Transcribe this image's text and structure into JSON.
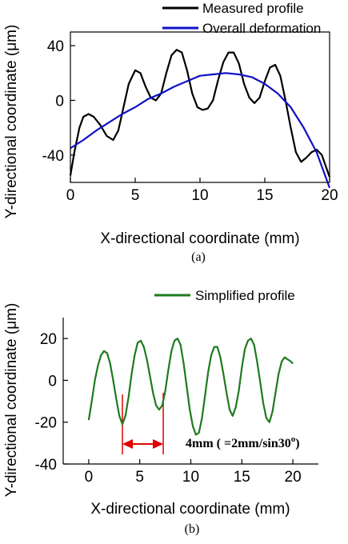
{
  "chart_data": [
    {
      "type": "line",
      "caption": "(a)",
      "xlabel": "X-directional coordinate (mm)",
      "ylabel": "Y-directional coordinate (μm)",
      "xlim": [
        0,
        20
      ],
      "ylim": [
        -60,
        50
      ],
      "xticks": [
        0,
        5,
        10,
        15,
        20
      ],
      "yticks": [
        -40,
        0,
        40
      ],
      "legend_position": "top-right",
      "series": [
        {
          "name": "Measured profile",
          "color": "#000000",
          "x": [
            0,
            0.3,
            0.7,
            1.0,
            1.4,
            1.8,
            2.3,
            2.8,
            3.3,
            3.7,
            4.1,
            4.5,
            5.0,
            5.4,
            5.8,
            6.2,
            6.6,
            7.0,
            7.4,
            7.8,
            8.2,
            8.6,
            9.0,
            9.4,
            9.8,
            10.2,
            10.6,
            11.0,
            11.4,
            11.8,
            12.2,
            12.6,
            13.0,
            13.4,
            13.8,
            14.2,
            14.6,
            15.0,
            15.4,
            15.8,
            16.2,
            16.6,
            17.0,
            17.4,
            17.8,
            18.2,
            18.6,
            19.0,
            19.4,
            19.7,
            20.0
          ],
          "y": [
            -55,
            -38,
            -20,
            -12,
            -10,
            -12,
            -18,
            -26,
            -29,
            -22,
            -5,
            12,
            22,
            20,
            10,
            2,
            0,
            5,
            20,
            33,
            37,
            35,
            22,
            5,
            -5,
            -7,
            -6,
            0,
            15,
            28,
            35,
            35,
            27,
            12,
            2,
            -2,
            2,
            14,
            24,
            26,
            18,
            0,
            -20,
            -38,
            -45,
            -42,
            -38,
            -36,
            -40,
            -48,
            -56
          ]
        },
        {
          "name": "Overall deformation",
          "color": "#1010c8",
          "x": [
            0,
            1,
            2,
            3,
            4,
            5,
            6,
            7,
            8,
            9,
            10,
            11,
            12,
            13,
            14,
            15,
            16,
            17,
            18,
            19,
            20
          ],
          "y": [
            -35,
            -29,
            -22,
            -16,
            -10,
            -5,
            1,
            5,
            10,
            14,
            18,
            19,
            20,
            19,
            17,
            12,
            5,
            -5,
            -20,
            -38,
            -64
          ]
        }
      ]
    },
    {
      "type": "line",
      "caption": "(b)",
      "xlabel": "X-directional coordinate (mm)",
      "ylabel": "Y-directional coordinate (μm)",
      "xlim": [
        -2.5,
        22.5
      ],
      "ylim": [
        -40,
        30
      ],
      "xticks": [
        0,
        5,
        10,
        15,
        20
      ],
      "yticks": [
        -40,
        -20,
        0,
        20
      ],
      "legend_position": "top-right",
      "annotation": "4mm ( =2mm/sin30",
      "annotation_superscript": "o",
      "annotation_end": ")",
      "annotation_markers_x": [
        3.3,
        7.3
      ],
      "series": [
        {
          "name": "Simplified profile",
          "color": "#1e7b1e",
          "x": [
            0,
            0.3,
            0.6,
            0.9,
            1.2,
            1.5,
            1.8,
            2.1,
            2.4,
            2.7,
            3.0,
            3.3,
            3.6,
            3.9,
            4.2,
            4.5,
            4.8,
            5.1,
            5.4,
            5.7,
            6.0,
            6.3,
            6.6,
            6.9,
            7.2,
            7.5,
            7.8,
            8.1,
            8.4,
            8.7,
            9.0,
            9.3,
            9.6,
            9.9,
            10.2,
            10.5,
            10.8,
            11.1,
            11.4,
            11.7,
            12.0,
            12.3,
            12.6,
            12.9,
            13.2,
            13.5,
            13.8,
            14.1,
            14.4,
            14.7,
            15.0,
            15.3,
            15.6,
            15.9,
            16.2,
            16.5,
            16.8,
            17.1,
            17.4,
            17.7,
            18.0,
            18.3,
            18.6,
            18.9,
            19.2,
            19.5,
            19.8,
            20.0
          ],
          "y": [
            -19,
            -10,
            0,
            7,
            12,
            14,
            13,
            8,
            0,
            -9,
            -17,
            -21,
            -17,
            -8,
            3,
            12,
            18,
            19,
            16,
            10,
            2,
            -6,
            -12,
            -14,
            -12,
            -5,
            5,
            14,
            19,
            20,
            17,
            8,
            -3,
            -14,
            -22,
            -26,
            -25,
            -18,
            -7,
            4,
            12,
            16,
            16,
            11,
            3,
            -6,
            -14,
            -17,
            -13,
            -5,
            6,
            15,
            19,
            20,
            17,
            9,
            -1,
            -11,
            -18,
            -20,
            -15,
            -6,
            3,
            9,
            11,
            10,
            9,
            8
          ]
        }
      ]
    }
  ]
}
